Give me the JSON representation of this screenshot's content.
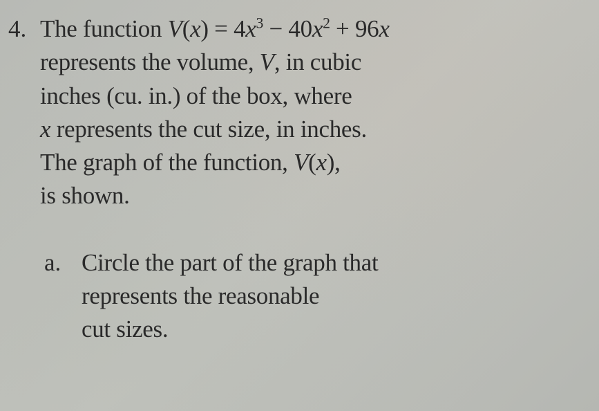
{
  "problem": {
    "number": "4.",
    "func_name": "V",
    "func_var": "x",
    "coeff1": "4",
    "exp1": "3",
    "op1": " − ",
    "coeff2": "40",
    "exp2": "2",
    "op2": " + ",
    "coeff3": "96",
    "line1_prefix": "The function ",
    "line2": "represents the volume, ",
    "line2_var": "V",
    "line2_suffix": ", in cubic",
    "line3": "inches (cu. in.) of the box, where",
    "line4_var": "x",
    "line4": " represents the cut size, in inches.",
    "line5": "The graph of the function, ",
    "line5_func": "V",
    "line5_var": "x",
    "line5_suffix": ",",
    "line6": "is shown."
  },
  "subpart": {
    "letter": "a.",
    "line1": "Circle the part of the graph that",
    "line2": "represents the reasonable",
    "line3": "cut sizes."
  },
  "style": {
    "background": "#bcbeb8",
    "text_color": "#2a2a2a",
    "font_size_pt": 26,
    "font_family": "Georgia, Times New Roman, serif"
  }
}
